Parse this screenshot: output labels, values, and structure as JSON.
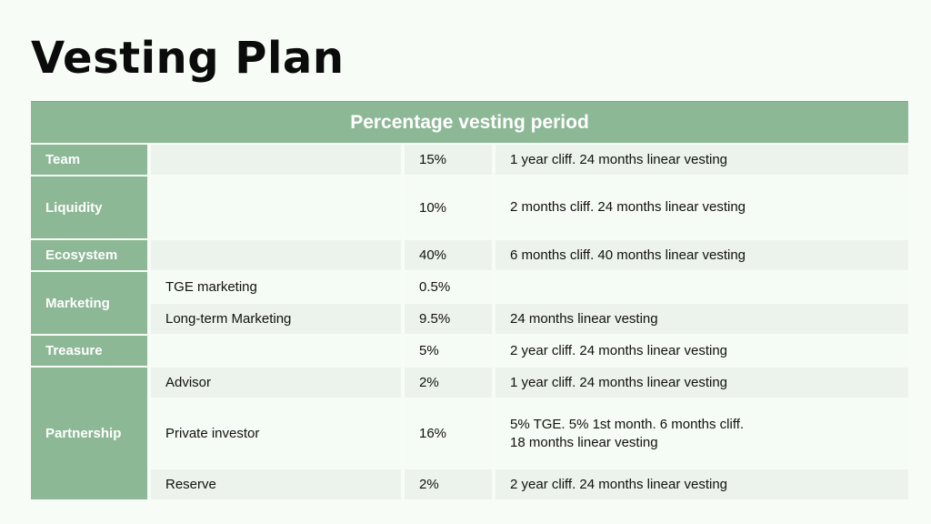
{
  "title": "Vesting Plan",
  "table": {
    "header": "Percentage vesting period",
    "rows": [
      {
        "category": "Team",
        "sub": "",
        "percent": "15%",
        "vesting": "1 year cliff. 24 months linear vesting"
      },
      {
        "category": "Liquidity",
        "sub": "",
        "percent": "10%",
        "vesting": "2 months cliff. 24 months linear vesting"
      },
      {
        "category": "Ecosystem",
        "sub": "",
        "percent": "40%",
        "vesting": "6 months cliff. 40 months linear vesting"
      },
      {
        "category": "Marketing",
        "sub": "TGE marketing",
        "percent": "0.5%",
        "vesting": ""
      },
      {
        "category": "",
        "sub": "Long-term Marketing",
        "percent": "9.5%",
        "vesting": "24 months linear vesting"
      },
      {
        "category": "Treasure",
        "sub": "",
        "percent": "5%",
        "vesting": "2 year cliff. 24 months linear vesting"
      },
      {
        "category": "Partnership",
        "sub": "Advisor",
        "percent": "2%",
        "vesting": "1 year cliff. 24 months linear vesting"
      },
      {
        "category": "",
        "sub": "Private investor",
        "percent": "16%",
        "vesting": "5% TGE. 5% 1st month. 6 months cliff.\n18 months linear vesting"
      },
      {
        "category": "",
        "sub": "Reserve",
        "percent": "2%",
        "vesting": "2 year cliff. 24 months linear vesting"
      }
    ]
  }
}
